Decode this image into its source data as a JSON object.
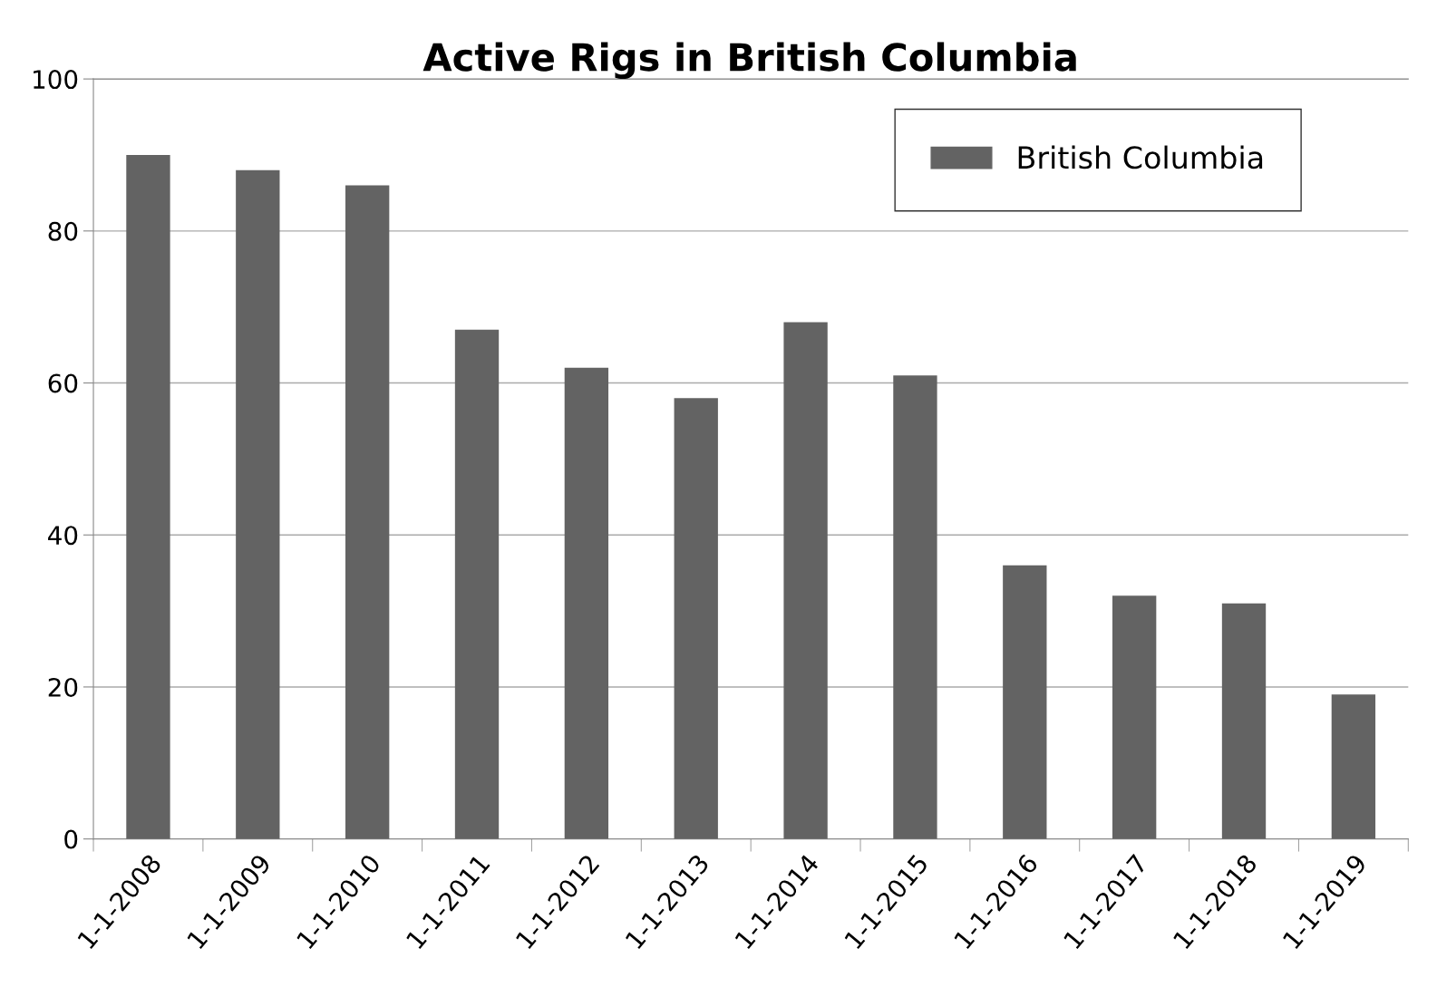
{
  "chart_data": {
    "type": "bar",
    "title": "Active Rigs in British Columbia",
    "categories": [
      "1-1-2008",
      "1-1-2009",
      "1-1-2010",
      "1-1-2011",
      "1-1-2012",
      "1-1-2013",
      "1-1-2014",
      "1-1-2015",
      "1-1-2016",
      "1-1-2017",
      "1-1-2018",
      "1-1-2019"
    ],
    "series": [
      {
        "name": "British Columbia",
        "color": "#636363",
        "values": [
          90,
          88,
          86,
          67,
          62,
          58,
          68,
          61,
          36,
          32,
          31,
          19
        ]
      }
    ],
    "ylim": [
      0,
      100
    ],
    "yticks": [
      0,
      20,
      40,
      60,
      80,
      100
    ],
    "grid": "y",
    "legend": "top right"
  }
}
